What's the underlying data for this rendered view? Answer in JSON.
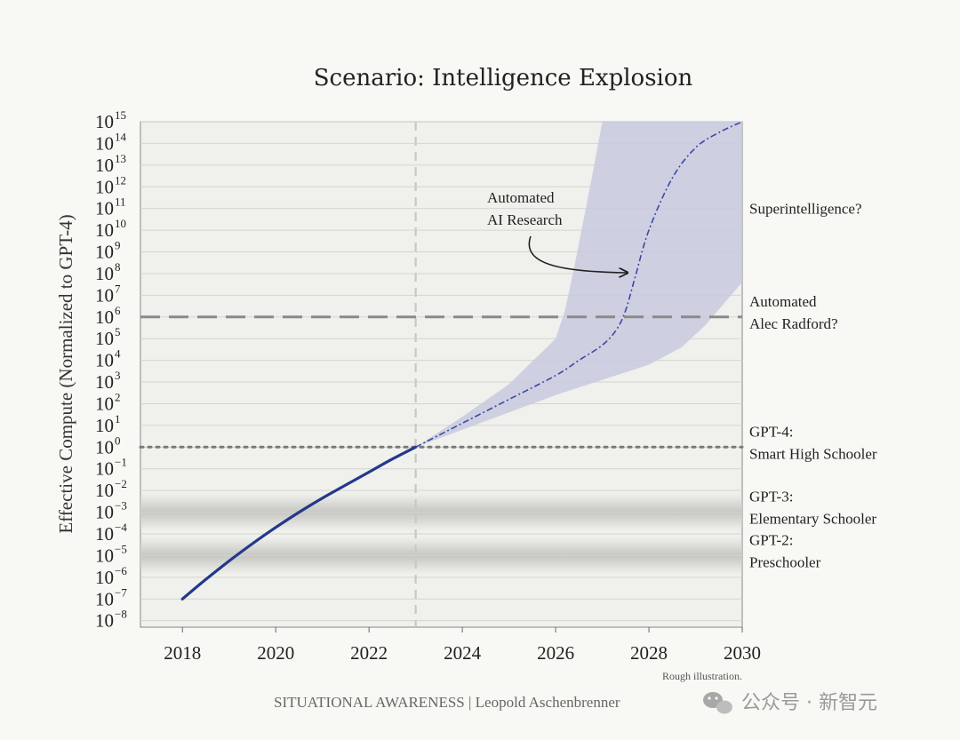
{
  "chart_data": {
    "type": "line",
    "title": "Scenario: Intelligence Explosion",
    "ylabel": "Effective Compute (Normalized to GPT-4)",
    "xlabel": "",
    "y_scale": "log",
    "xlim": [
      2017.1,
      2030
    ],
    "ylim_exponent": [
      -8.3,
      15
    ],
    "x_ticks": [
      "2018",
      "2020",
      "2022",
      "2024",
      "2026",
      "2028",
      "2030"
    ],
    "y_tick_exponents": [
      -8,
      -7,
      -6,
      -5,
      -4,
      -3,
      -2,
      -1,
      0,
      1,
      2,
      3,
      4,
      5,
      6,
      7,
      8,
      9,
      10,
      11,
      12,
      13,
      14,
      15
    ],
    "grid": true,
    "series": [
      {
        "style": "solid",
        "color": "#24388a",
        "x": [
          2018,
          2018.5,
          2019,
          2019.5,
          2020,
          2020.5,
          2021,
          2021.5,
          2022,
          2022.5,
          2023
        ],
        "y_exponent": [
          -7,
          -6.1,
          -5.25,
          -4.45,
          -3.7,
          -3.0,
          -2.35,
          -1.75,
          -1.15,
          -0.55,
          0
        ]
      },
      {
        "style": "dashdot",
        "color": "#3a4aa0",
        "x": [
          2023,
          2024,
          2025,
          2026,
          2026.5,
          2027,
          2027.3,
          2027.5,
          2027.7,
          2028,
          2028.5,
          2029,
          2029.5,
          2030
        ],
        "y_exponent": [
          0,
          1.1,
          2.2,
          3.3,
          4.0,
          4.7,
          5.4,
          6.3,
          7.8,
          10.0,
          12.4,
          13.8,
          14.5,
          15
        ]
      }
    ],
    "uncertainty_band": {
      "color": "#c8c8e0",
      "upper": {
        "x": [
          2023,
          2024,
          2025,
          2026,
          2026.2,
          2026.4,
          2026.6,
          2026.8,
          2027
        ],
        "y_exponent": [
          0,
          1.4,
          2.9,
          5.0,
          6.3,
          8.3,
          10.5,
          12.7,
          15
        ]
      },
      "lower": {
        "x": [
          2023,
          2024,
          2025,
          2026,
          2027,
          2028,
          2028.7,
          2029.2,
          2029.6,
          2030
        ],
        "y_exponent": [
          0,
          0.8,
          1.6,
          2.4,
          3.1,
          3.8,
          4.6,
          5.6,
          6.6,
          7.6
        ]
      }
    },
    "reference_lines": [
      {
        "type": "vertical",
        "x": 2023,
        "style": "dashed"
      },
      {
        "type": "horizontal",
        "y_exponent": 6,
        "style": "dashed"
      },
      {
        "type": "horizontal",
        "y_exponent": 0,
        "style": "dotted"
      }
    ],
    "shaded_bands": [
      {
        "y_exponent_center": -3
      },
      {
        "y_exponent_center": -5
      }
    ],
    "annotations": [
      {
        "id": "superintelligence",
        "lines": [
          "Superintelligence?"
        ],
        "y_exponent": 11
      },
      {
        "id": "alec",
        "lines": [
          "Automated",
          "Alec Radford?"
        ],
        "y_exponent": 6
      },
      {
        "id": "gpt4",
        "lines": [
          "GPT-4:",
          "Smart High Schooler"
        ],
        "y_exponent": 0
      },
      {
        "id": "gpt3",
        "lines": [
          "GPT-3:",
          "Elementary Schooler"
        ],
        "y_exponent": -3
      },
      {
        "id": "gpt2",
        "lines": [
          "GPT-2:",
          "Preschooler"
        ],
        "y_exponent": -5
      }
    ],
    "inner_annotation": {
      "lines": [
        "Automated",
        "AI Research"
      ]
    },
    "footer": "SITUATIONAL AWARENESS | Leopold Aschenbrenner",
    "note": "Rough illustration.",
    "watermark": "公众号 · 新智元"
  }
}
